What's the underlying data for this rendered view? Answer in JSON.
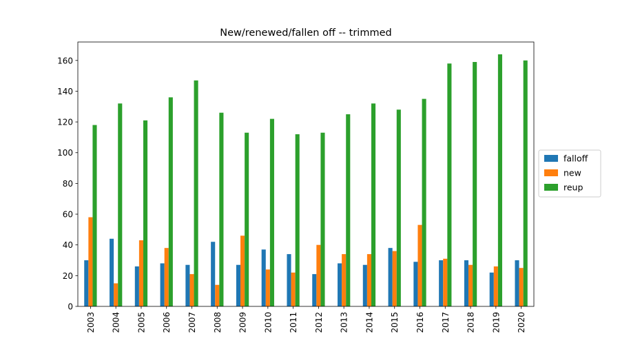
{
  "chart_data": {
    "type": "bar",
    "title": "New/renewed/fallen off -- trimmed",
    "xlabel": "",
    "ylabel": "",
    "categories": [
      "2003",
      "2004",
      "2005",
      "2006",
      "2007",
      "2008",
      "2009",
      "2010",
      "2011",
      "2012",
      "2013",
      "2014",
      "2015",
      "2016",
      "2017",
      "2018",
      "2019",
      "2020"
    ],
    "series": [
      {
        "name": "falloff",
        "color": "#1f77b4",
        "values": [
          30,
          44,
          26,
          28,
          27,
          42,
          27,
          37,
          34,
          21,
          28,
          27,
          38,
          29,
          30,
          30,
          22,
          30
        ]
      },
      {
        "name": "new",
        "color": "#ff7f0e",
        "values": [
          58,
          15,
          43,
          38,
          21,
          14,
          46,
          24,
          22,
          40,
          34,
          34,
          36,
          53,
          31,
          27,
          26,
          25
        ]
      },
      {
        "name": "reup",
        "color": "#2ca02c",
        "values": [
          118,
          132,
          121,
          136,
          147,
          126,
          113,
          122,
          112,
          113,
          125,
          132,
          128,
          135,
          158,
          159,
          164,
          160
        ]
      }
    ],
    "ylim": [
      0,
      172
    ],
    "yticks": [
      0,
      20,
      40,
      60,
      80,
      100,
      120,
      140,
      160
    ],
    "grid": false,
    "legend_position": "right"
  }
}
